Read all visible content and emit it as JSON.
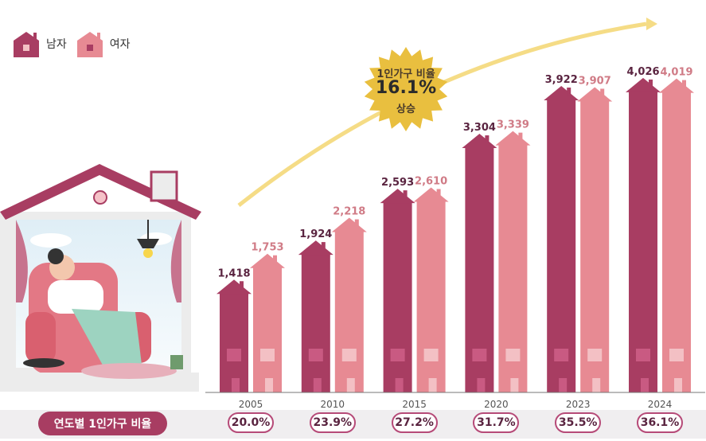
{
  "legend": {
    "male_label": "남자",
    "female_label": "여자"
  },
  "colors": {
    "male": "#a83d62",
    "female": "#e78a93",
    "male_light": "#c95a82",
    "female_light": "#f3c0c4",
    "axis": "#666666",
    "badge": "#e9bf3f",
    "arrow": "#f5dc86",
    "rate_bar": "#a83d62",
    "rate_bg": "#f0eef0"
  },
  "annotation": {
    "line1": "1인가구 비율",
    "line2": "16.1%",
    "line3": "상승"
  },
  "rate_row": {
    "title": "연도별 1인가구 비율",
    "values": [
      "20.0%",
      "23.9%",
      "27.2%",
      "31.7%",
      "35.5%",
      "36.1%"
    ]
  },
  "chart_data": {
    "type": "bar",
    "categories": [
      "2005",
      "2010",
      "2015",
      "2020",
      "2023",
      "2024"
    ],
    "series": [
      {
        "name": "남자",
        "values": [
          1418,
          1924,
          2593,
          3304,
          3922,
          4026
        ]
      },
      {
        "name": "여자",
        "values": [
          1753,
          2218,
          2610,
          3339,
          3907,
          4019
        ]
      }
    ],
    "value_labels": {
      "male": [
        "1,418",
        "1,924",
        "2,593",
        "3,304",
        "3,922",
        "4,026"
      ],
      "female": [
        "1,753",
        "2,218",
        "2,610",
        "3,339",
        "3,907",
        "4,019"
      ]
    },
    "ylim": [
      0,
      4200
    ],
    "legend": "top-left"
  }
}
